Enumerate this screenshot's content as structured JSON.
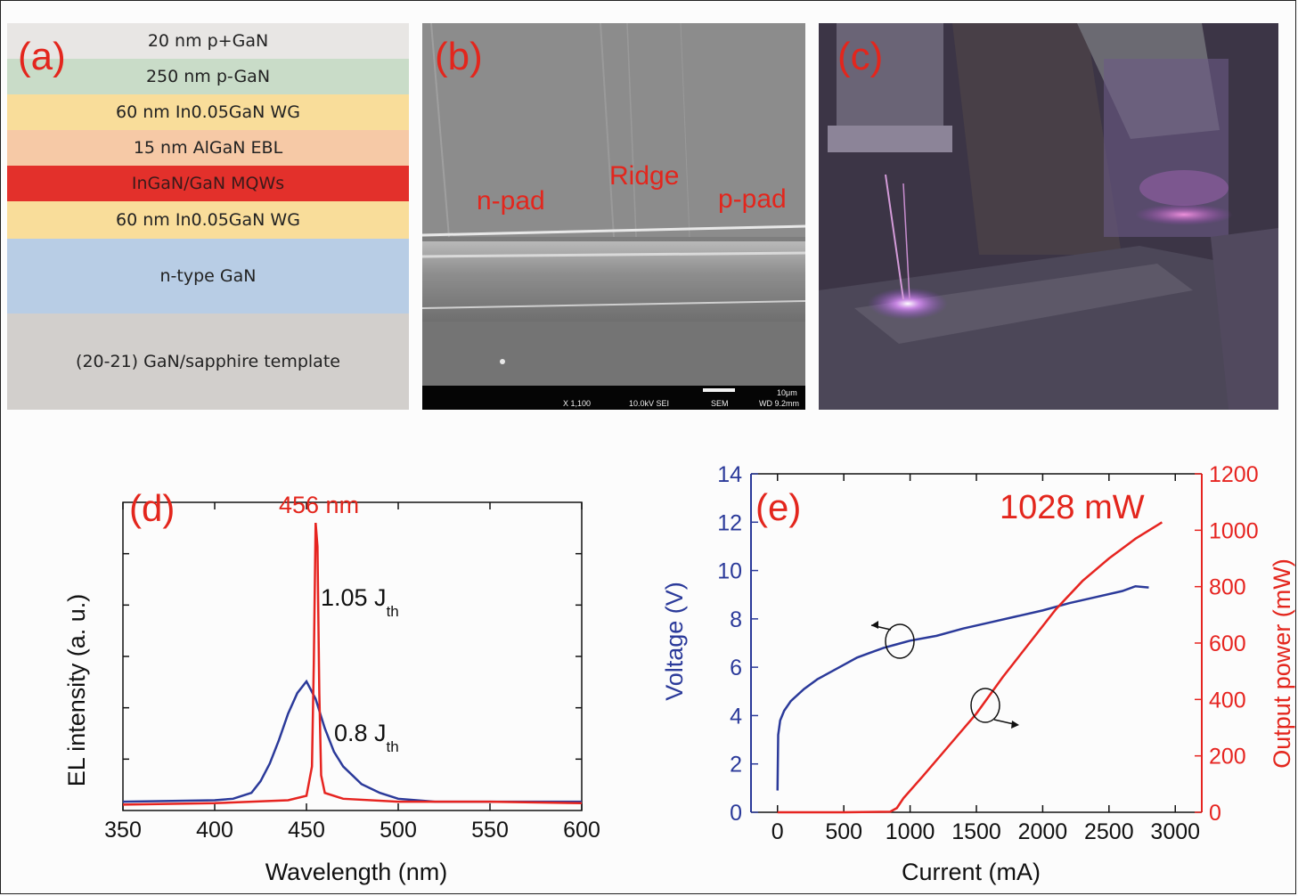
{
  "panel_a": {
    "label": "(a)",
    "layers": [
      {
        "text": "20 nm p+GaN",
        "color": "#e8e6e4",
        "text_color": "#222222"
      },
      {
        "text": "250 nm p-GaN",
        "color": "#c9dcc8",
        "text_color": "#222222"
      },
      {
        "text": "60 nm In0.05GaN WG",
        "color": "#f9dd9a",
        "text_color": "#222222"
      },
      {
        "text": "15 nm AlGaN EBL",
        "color": "#f6c9a6",
        "text_color": "#222222"
      },
      {
        "text": "InGaN/GaN MQWs",
        "color": "#e3302b",
        "text_color": "#3a1a1a"
      },
      {
        "text": "60 nm In0.05GaN WG",
        "color": "#f9dd9a",
        "text_color": "#222222"
      },
      {
        "text": "n-type GaN",
        "color": "#b8cde5",
        "text_color": "#222222"
      },
      {
        "text": "(20-21) GaN/sapphire template",
        "color": "#d2cfcc",
        "text_color": "#222222"
      }
    ]
  },
  "panel_b": {
    "label": "(b)",
    "n_pad": "n-pad",
    "ridge": "Ridge",
    "p_pad": "p-pad",
    "sem_info": [
      "X 1,100",
      "10.0kV SEI",
      "SEM",
      "WD 9.2mm"
    ],
    "scale_bar": "10μm"
  },
  "panel_c": {
    "label": "(c)"
  },
  "chart_data": [
    {
      "type": "line",
      "panel_label": "(d)",
      "annotation_peak": "456 nm",
      "annotation_high": "1.05 J",
      "annotation_low": "0.8 J",
      "annotation_sub": "th",
      "xlabel": "Wavelength (nm)",
      "ylabel": "EL intensity (a. u.)",
      "xlim": [
        350,
        600
      ],
      "xticks": [
        "350",
        "400",
        "450",
        "500",
        "550",
        "600"
      ],
      "colors": {
        "low": "#2b3a9a",
        "high": "#e62420"
      },
      "series": [
        {
          "x": [
            350,
            400,
            410,
            420,
            425,
            430,
            435,
            440,
            445,
            450,
            455,
            460,
            465,
            470,
            475,
            480,
            490,
            500,
            510,
            520,
            530,
            550,
            600
          ],
          "y": [
            0.03,
            0.035,
            0.04,
            0.06,
            0.1,
            0.16,
            0.24,
            0.33,
            0.4,
            0.44,
            0.38,
            0.28,
            0.2,
            0.15,
            0.12,
            0.09,
            0.06,
            0.04,
            0.035,
            0.03,
            0.03,
            0.03,
            0.03
          ]
        },
        {
          "x": [
            350,
            400,
            420,
            440,
            450,
            453,
            454,
            455,
            456,
            457,
            458,
            460,
            470,
            500,
            550,
            600
          ],
          "y": [
            0.02,
            0.025,
            0.03,
            0.035,
            0.05,
            0.15,
            0.5,
            0.98,
            0.9,
            0.4,
            0.12,
            0.06,
            0.04,
            0.03,
            0.03,
            0.025
          ]
        }
      ]
    },
    {
      "type": "line",
      "panel_label": "(e)",
      "annotation": "1028 mW",
      "xlabel": "Current (mA)",
      "ylabel_left": "Voltage (V)",
      "ylabel_right": "Output power (mW)",
      "xlim": [
        -200,
        3200
      ],
      "ylim_left": [
        0,
        14
      ],
      "ylim_right": [
        0,
        1200
      ],
      "xticks": [
        "0",
        "500",
        "1000",
        "1500",
        "2000",
        "2500",
        "3000"
      ],
      "yticks_left": [
        "0",
        "2",
        "4",
        "6",
        "8",
        "10",
        "12",
        "14"
      ],
      "yticks_right": [
        "0",
        "200",
        "400",
        "600",
        "800",
        "1000",
        "1200"
      ],
      "colors": {
        "voltage": "#2b3a9a",
        "power": "#e62420"
      },
      "series": [
        {
          "x": [
            0,
            5,
            20,
            50,
            100,
            200,
            300,
            400,
            500,
            600,
            700,
            800,
            900,
            1000,
            1200,
            1400,
            1600,
            1800,
            2000,
            2200,
            2400,
            2600,
            2700,
            2800
          ],
          "y": [
            0.9,
            3.2,
            3.8,
            4.2,
            4.6,
            5.1,
            5.5,
            5.8,
            6.1,
            6.4,
            6.6,
            6.8,
            6.95,
            7.1,
            7.3,
            7.6,
            7.85,
            8.1,
            8.35,
            8.65,
            8.9,
            9.15,
            9.35,
            9.3
          ]
        },
        {
          "x": [
            0,
            500,
            850,
            900,
            950,
            1100,
            1300,
            1500,
            1700,
            1900,
            2100,
            2300,
            2500,
            2700,
            2900
          ],
          "y": [
            0,
            0,
            2,
            15,
            50,
            130,
            240,
            350,
            480,
            600,
            720,
            820,
            900,
            970,
            1028
          ]
        }
      ]
    }
  ]
}
